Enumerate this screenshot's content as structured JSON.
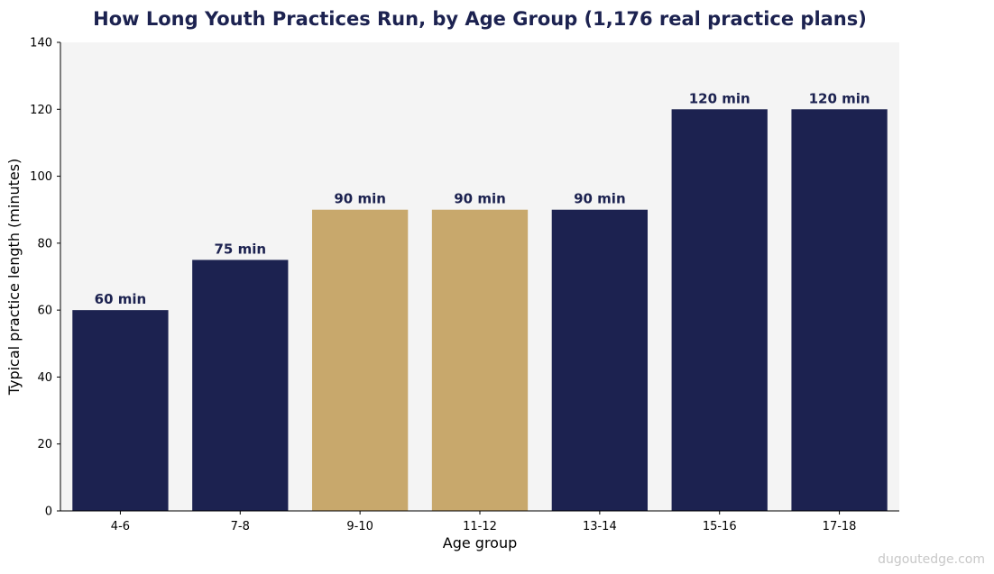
{
  "chart_data": {
    "type": "bar",
    "title": "How Long Youth Practices Run, by Age Group (1,176 real practice plans)",
    "xlabel": "Age group",
    "ylabel": "Typical practice length (minutes)",
    "categories": [
      "4-6",
      "7-8",
      "9-10",
      "11-12",
      "13-14",
      "15-16",
      "17-18"
    ],
    "values": [
      60,
      75,
      90,
      90,
      90,
      120,
      120
    ],
    "data_labels": [
      "60 min",
      "75 min",
      "90 min",
      "90 min",
      "90 min",
      "120 min",
      "120 min"
    ],
    "highlighted": [
      false,
      false,
      true,
      true,
      false,
      false,
      false
    ],
    "ylim": [
      0,
      140
    ],
    "yticks": [
      0,
      20,
      40,
      60,
      80,
      100,
      120,
      140
    ],
    "grid": false,
    "colors": {
      "bar": "#1c2250",
      "highlight": "#c8a86c",
      "plot_background": "#f4f4f4",
      "title": "#1c2250"
    }
  },
  "watermark": "dugoutedge.com"
}
